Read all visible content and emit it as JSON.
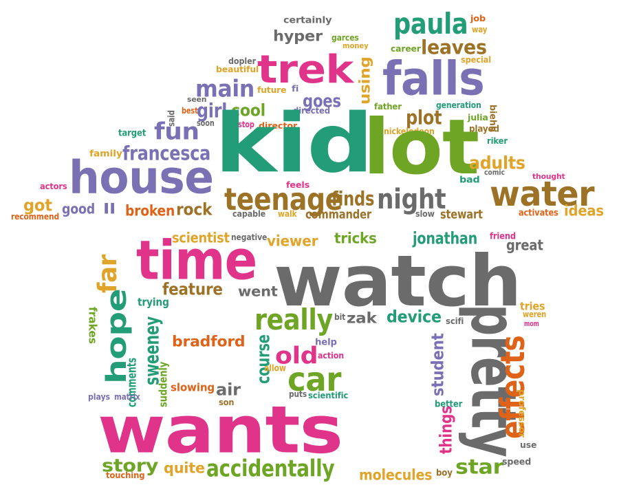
{
  "palette": {
    "pink": "#e0338a",
    "purple": "#7a70b4",
    "green": "#239c78",
    "lime": "#6ea525",
    "gray": "#6b6b6b",
    "orange": "#de6319",
    "gold": "#dfa429",
    "brown": "#9c7226"
  },
  "words": [
    {
      "text": "certainly",
      "color": "gray"
    },
    {
      "text": "paula",
      "color": "green"
    },
    {
      "text": "job",
      "color": "orange"
    },
    {
      "text": "way",
      "color": "gold"
    },
    {
      "text": "hyper",
      "color": "gray"
    },
    {
      "text": "garces",
      "color": "lime"
    },
    {
      "text": "money",
      "color": "gold"
    },
    {
      "text": "career",
      "color": "lime"
    },
    {
      "text": "leaves",
      "color": "brown"
    },
    {
      "text": "trek",
      "color": "pink"
    },
    {
      "text": "dopler",
      "color": "gray"
    },
    {
      "text": "beautiful",
      "color": "gold"
    },
    {
      "text": "falls",
      "color": "purple"
    },
    {
      "text": "special",
      "color": "gold"
    },
    {
      "text": "using",
      "color": "gold"
    },
    {
      "text": "main",
      "color": "purple"
    },
    {
      "text": "future",
      "color": "gold"
    },
    {
      "text": "fi",
      "color": "purple"
    },
    {
      "text": "goes",
      "color": "purple"
    },
    {
      "text": "seen",
      "color": "gray"
    },
    {
      "text": "best",
      "color": "orange"
    },
    {
      "text": "said",
      "color": "gray"
    },
    {
      "text": "girl",
      "color": "purple"
    },
    {
      "text": "cool",
      "color": "lime"
    },
    {
      "text": "directed",
      "color": "purple"
    },
    {
      "text": "father",
      "color": "lime"
    },
    {
      "text": "generation",
      "color": "green"
    },
    {
      "text": "plot",
      "color": "brown"
    },
    {
      "text": "julia",
      "color": "lime"
    },
    {
      "text": "biehn",
      "color": "brown"
    },
    {
      "text": "soon",
      "color": "gray"
    },
    {
      "text": "stop",
      "color": "pink"
    },
    {
      "text": "director",
      "color": "orange"
    },
    {
      "text": "nickelodeon",
      "color": "gold"
    },
    {
      "text": "played",
      "color": "brown"
    },
    {
      "text": "target",
      "color": "green"
    },
    {
      "text": "fun",
      "color": "purple"
    },
    {
      "text": "kid",
      "color": "green"
    },
    {
      "text": "lot",
      "color": "lime"
    },
    {
      "text": "riker",
      "color": "green"
    },
    {
      "text": "family",
      "color": "gold"
    },
    {
      "text": "francesca",
      "color": "purple"
    },
    {
      "text": "adults",
      "color": "gold"
    },
    {
      "text": "comic",
      "color": "gray"
    },
    {
      "text": "thought",
      "color": "pink"
    },
    {
      "text": "bad",
      "color": "green"
    },
    {
      "text": "house",
      "color": "purple"
    },
    {
      "text": "actors",
      "color": "pink"
    },
    {
      "text": "feels",
      "color": "pink"
    },
    {
      "text": "water",
      "color": "brown"
    },
    {
      "text": "teenage",
      "color": "brown"
    },
    {
      "text": "finds",
      "color": "brown"
    },
    {
      "text": "night",
      "color": "gray"
    },
    {
      "text": "got",
      "color": "gold"
    },
    {
      "text": "recommend",
      "color": "orange"
    },
    {
      "text": "good",
      "color": "purple"
    },
    {
      "text": "ll",
      "color": "purple"
    },
    {
      "text": "broken",
      "color": "orange"
    },
    {
      "text": "rock",
      "color": "brown"
    },
    {
      "text": "capable",
      "color": "gray"
    },
    {
      "text": "walk",
      "color": "gold"
    },
    {
      "text": "commander",
      "color": "brown"
    },
    {
      "text": "slow",
      "color": "gray"
    },
    {
      "text": "stewart",
      "color": "brown"
    },
    {
      "text": "activates",
      "color": "orange"
    },
    {
      "text": "ideas",
      "color": "gold"
    },
    {
      "text": "scientist",
      "color": "gold"
    },
    {
      "text": "negative",
      "color": "gray"
    },
    {
      "text": "viewer",
      "color": "gold"
    },
    {
      "text": "tricks",
      "color": "lime"
    },
    {
      "text": "jonathan",
      "color": "green"
    },
    {
      "text": "friend",
      "color": "pink"
    },
    {
      "text": "great",
      "color": "gray"
    },
    {
      "text": "time",
      "color": "pink"
    },
    {
      "text": "watch",
      "color": "gray"
    },
    {
      "text": "far",
      "color": "gold"
    },
    {
      "text": "feature",
      "color": "brown"
    },
    {
      "text": "went",
      "color": "gray"
    },
    {
      "text": "hope",
      "color": "green"
    },
    {
      "text": "trying",
      "color": "green"
    },
    {
      "text": "tries",
      "color": "gold"
    },
    {
      "text": "weren",
      "color": "gold"
    },
    {
      "text": "mom",
      "color": "pink"
    },
    {
      "text": "really",
      "color": "lime"
    },
    {
      "text": "bit",
      "color": "gray"
    },
    {
      "text": "zak",
      "color": "gray"
    },
    {
      "text": "device",
      "color": "green"
    },
    {
      "text": "scifi",
      "color": "gray"
    },
    {
      "text": "frakes",
      "color": "lime"
    },
    {
      "text": "sweeney",
      "color": "green"
    },
    {
      "text": "bradford",
      "color": "orange"
    },
    {
      "text": "course",
      "color": "green"
    },
    {
      "text": "help",
      "color": "purple"
    },
    {
      "text": "old",
      "color": "pink"
    },
    {
      "text": "action",
      "color": "pink"
    },
    {
      "text": "pretty",
      "color": "gray"
    },
    {
      "text": "effects",
      "color": "orange"
    },
    {
      "text": "student",
      "color": "purple"
    },
    {
      "text": "comments",
      "color": "green"
    },
    {
      "text": "allow",
      "color": "gold"
    },
    {
      "text": "car",
      "color": "lime"
    },
    {
      "text": "suddenly",
      "color": "lime"
    },
    {
      "text": "slowing",
      "color": "orange"
    },
    {
      "text": "air",
      "color": "gray"
    },
    {
      "text": "puts",
      "color": "gray"
    },
    {
      "text": "plays",
      "color": "purple"
    },
    {
      "text": "matrix",
      "color": "purple"
    },
    {
      "text": "son",
      "color": "brown"
    },
    {
      "text": "scientific",
      "color": "green"
    },
    {
      "text": "better",
      "color": "green"
    },
    {
      "text": "professor",
      "color": "gold"
    },
    {
      "text": "wants",
      "color": "pink"
    },
    {
      "text": "things",
      "color": "pink"
    },
    {
      "text": "use",
      "color": "gray"
    },
    {
      "text": "story",
      "color": "lime"
    },
    {
      "text": "quite",
      "color": "gold"
    },
    {
      "text": "accidentally",
      "color": "lime"
    },
    {
      "text": "molecules",
      "color": "gold"
    },
    {
      "text": "boy",
      "color": "brown"
    },
    {
      "text": "star",
      "color": "lime"
    },
    {
      "text": "speed",
      "color": "gray"
    },
    {
      "text": "touching",
      "color": "orange"
    }
  ]
}
